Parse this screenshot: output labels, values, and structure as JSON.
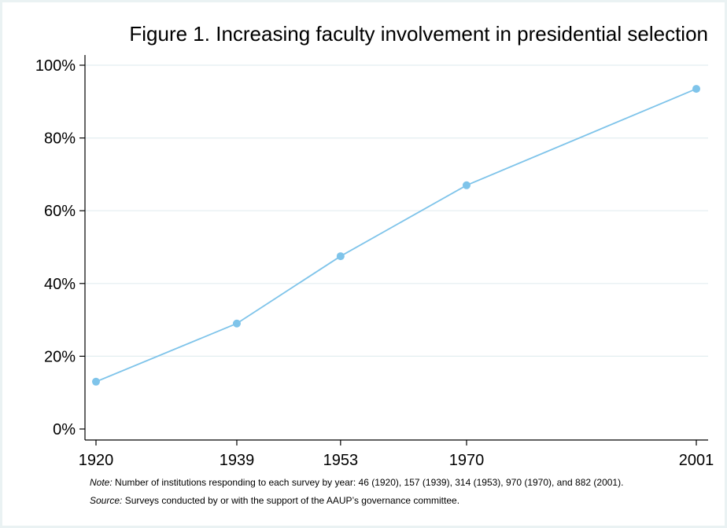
{
  "chart_data": {
    "type": "line",
    "title": "Figure 1. Increasing faculty involvement in presidential selection",
    "x": [
      1920,
      1939,
      1953,
      1970,
      2001
    ],
    "x_tick_labels": [
      "1920",
      "1939",
      "1953",
      "1970",
      "2001"
    ],
    "series": [
      {
        "values": [
          13,
          29,
          47.5,
          67,
          93.5
        ],
        "color": "#7fc4ea"
      }
    ],
    "xlim": [
      1920,
      2001
    ],
    "ylim": [
      0,
      100
    ],
    "y_ticks": [
      0,
      20,
      40,
      60,
      80,
      100
    ],
    "y_tick_labels": [
      "0%",
      "20%",
      "40%",
      "60%",
      "80%",
      "100%"
    ],
    "grid": true,
    "grid_color": "#e3eef0",
    "note_label": "Note:",
    "note_text": " Number of institutions responding to each survey by year: 46 (1920), 157 (1939), 314 (1953), 970 (1970), and 882 (2001).",
    "source_label": "Source:",
    "source_text": " Surveys conducted by or with the support of the AAUP’s governance committee."
  }
}
